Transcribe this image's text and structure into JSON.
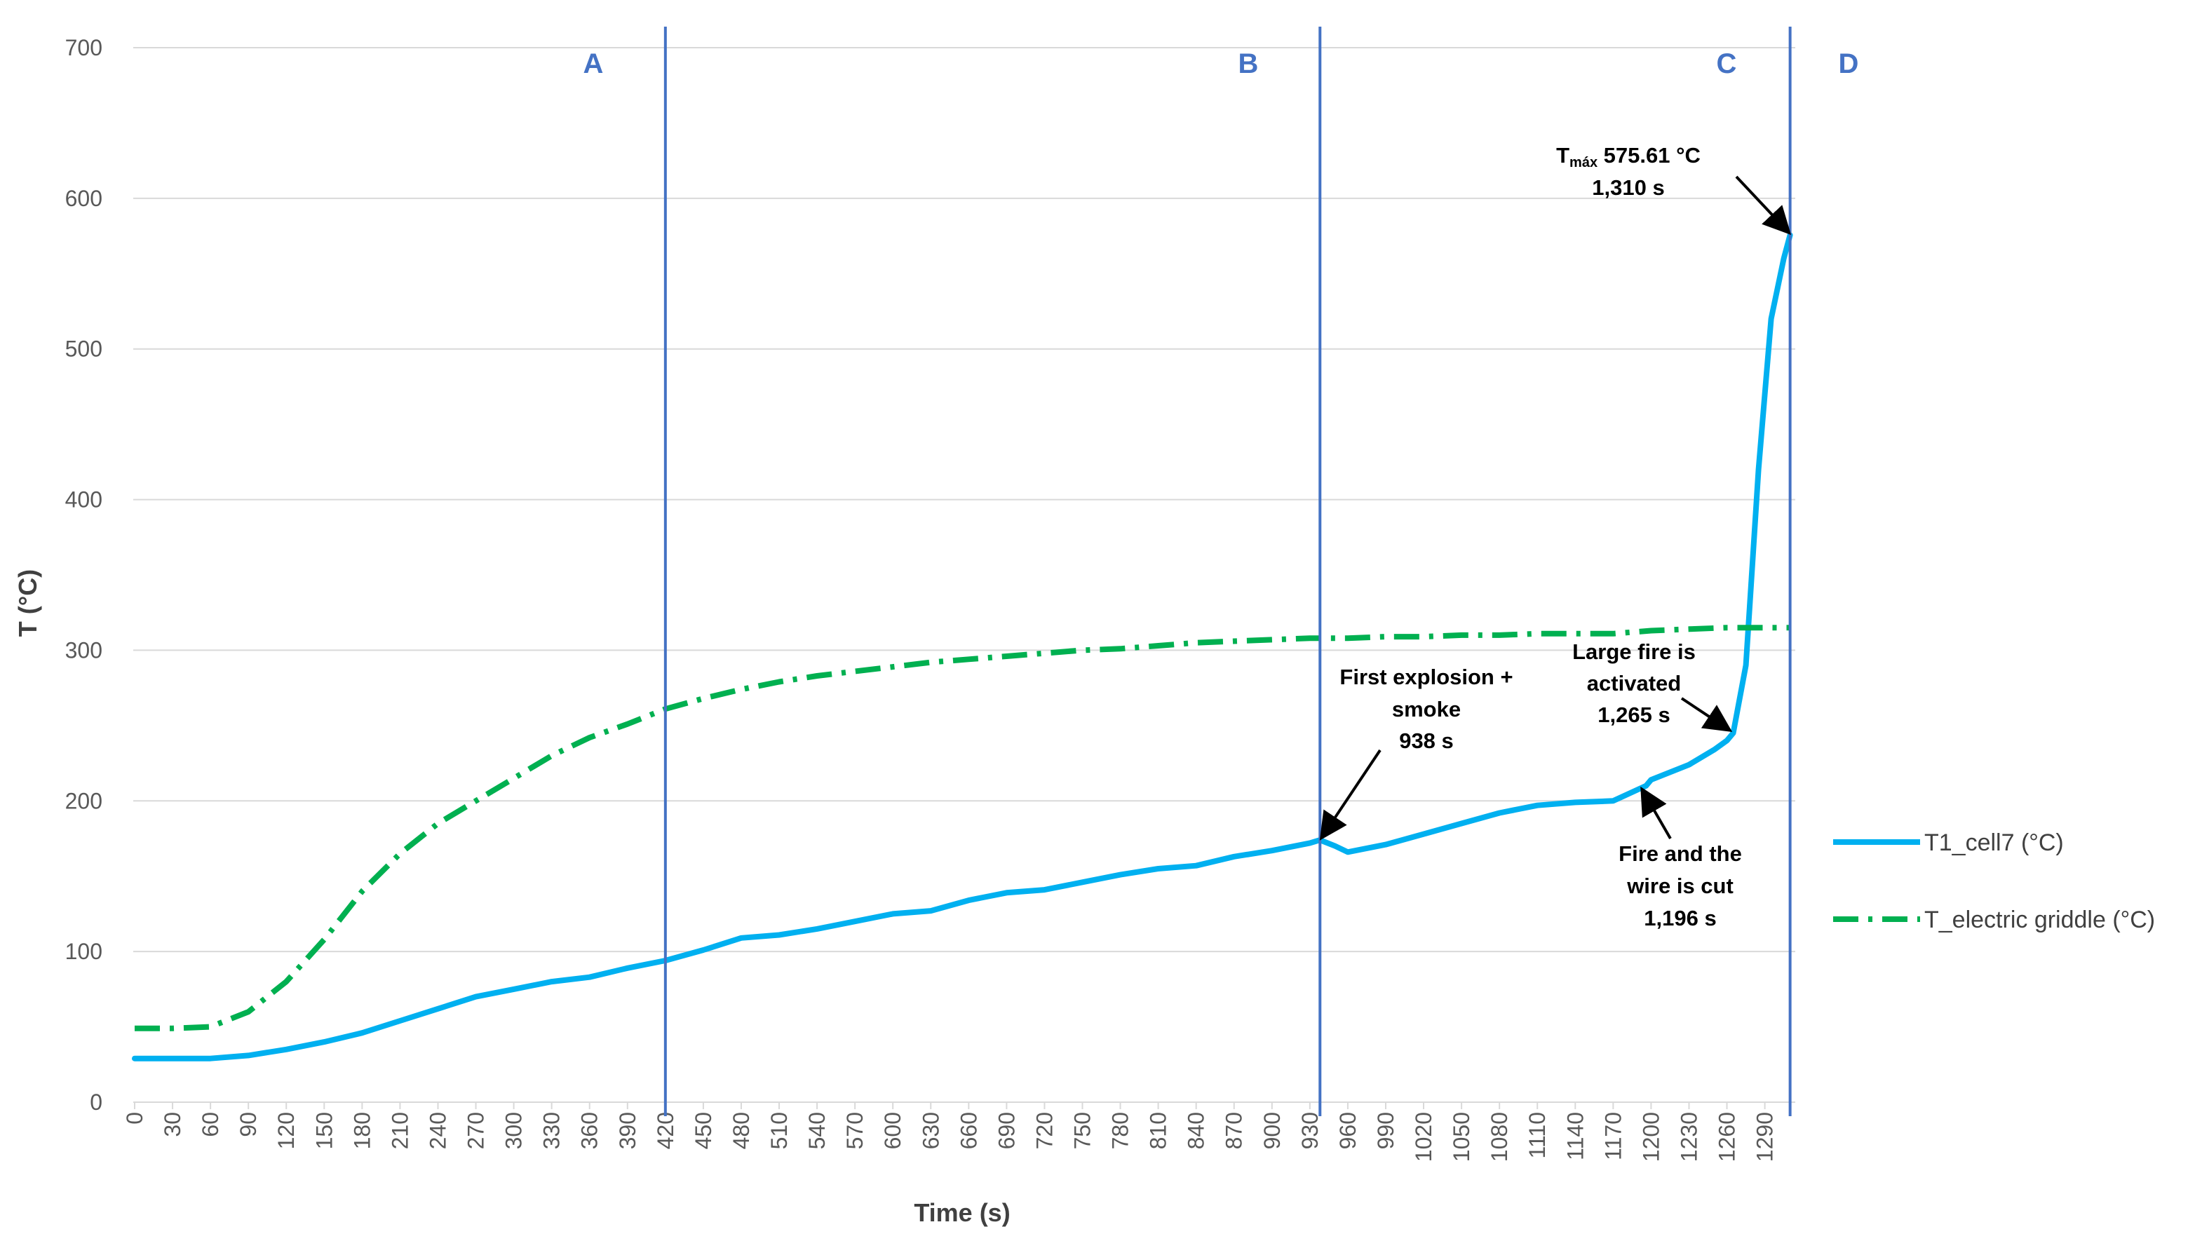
{
  "chart_data": {
    "type": "line",
    "xlabel": "Time (s)",
    "ylabel": "T (°C)",
    "xlim": [
      0,
      1310
    ],
    "ylim": [
      0,
      700
    ],
    "y_ticks": [
      "0",
      "100",
      "200",
      "300",
      "400",
      "500",
      "600",
      "700"
    ],
    "x_ticks": [
      "0",
      "30",
      "60",
      "90",
      "120",
      "150",
      "180",
      "210",
      "240",
      "270",
      "300",
      "330",
      "360",
      "390",
      "420",
      "450",
      "480",
      "510",
      "540",
      "570",
      "600",
      "630",
      "660",
      "690",
      "720",
      "750",
      "780",
      "810",
      "840",
      "870",
      "900",
      "930",
      "960",
      "990",
      "1020",
      "1050",
      "1080",
      "1110",
      "1140",
      "1170",
      "1200",
      "1230",
      "1260",
      "1290"
    ],
    "grid": "horizontal",
    "legend_position": "right",
    "series": [
      {
        "name": "T1_cell7 (°C)",
        "color": "#00B0F0",
        "style": "solid",
        "x": [
          0,
          30,
          60,
          90,
          120,
          150,
          180,
          210,
          240,
          270,
          300,
          330,
          360,
          390,
          420,
          450,
          480,
          510,
          540,
          570,
          600,
          630,
          660,
          690,
          720,
          750,
          780,
          810,
          840,
          870,
          900,
          930,
          938,
          950,
          960,
          990,
          1020,
          1050,
          1080,
          1110,
          1140,
          1170,
          1196,
          1200,
          1230,
          1250,
          1260,
          1265,
          1275,
          1285,
          1295,
          1305,
          1310
        ],
        "y": [
          29,
          29,
          29,
          31,
          35,
          40,
          46,
          54,
          62,
          70,
          75,
          80,
          83,
          89,
          94,
          101,
          109,
          111,
          115,
          120,
          125,
          127,
          134,
          139,
          141,
          146,
          151,
          155,
          157,
          163,
          167,
          172,
          174,
          170,
          166,
          171,
          178,
          185,
          192,
          197,
          199,
          200,
          210,
          214,
          224,
          234,
          240,
          245,
          290,
          420,
          520,
          560,
          575.61
        ]
      },
      {
        "name": "T_electric griddle (°C)",
        "color": "#00B050",
        "style": "dash-dot",
        "x": [
          0,
          30,
          60,
          90,
          120,
          150,
          180,
          210,
          240,
          270,
          300,
          330,
          360,
          390,
          420,
          450,
          480,
          510,
          540,
          570,
          600,
          630,
          660,
          690,
          720,
          750,
          780,
          810,
          840,
          870,
          900,
          930,
          960,
          990,
          1020,
          1050,
          1080,
          1110,
          1140,
          1170,
          1200,
          1230,
          1260,
          1290,
          1310
        ],
        "y": [
          49,
          49,
          50,
          60,
          80,
          108,
          140,
          165,
          185,
          200,
          215,
          230,
          242,
          251,
          261,
          268,
          274,
          279,
          283,
          286,
          289,
          292,
          294,
          296,
          298,
          300,
          301,
          303,
          305,
          306,
          307,
          308,
          308,
          309,
          309,
          310,
          310,
          311,
          311,
          311,
          313,
          314,
          315,
          315,
          315
        ]
      }
    ],
    "phase_lines": [
      {
        "label": "A",
        "x": 420
      },
      {
        "label": "B",
        "x": 938
      },
      {
        "label": "C",
        "x": 1310
      }
    ],
    "phase_labels": [
      "A",
      "B",
      "C",
      "D"
    ],
    "annotations": [
      {
        "lines": [
          "First explosion +",
          "smoke",
          "938 s"
        ],
        "target_x": 938,
        "target_y": 174
      },
      {
        "lines": [
          "Large fire is",
          "activated",
          "1,265 s"
        ],
        "target_x": 1265,
        "target_y": 245
      },
      {
        "lines": [
          "Fire and the",
          "wire is cut",
          "1,196 s"
        ],
        "target_x": 1196,
        "target_y": 210
      },
      {
        "lines": [
          "575.61 °C",
          "1,310 s"
        ],
        "prefix": "T",
        "subscript": "máx",
        "target_x": 1310,
        "target_y": 575.61
      }
    ]
  }
}
